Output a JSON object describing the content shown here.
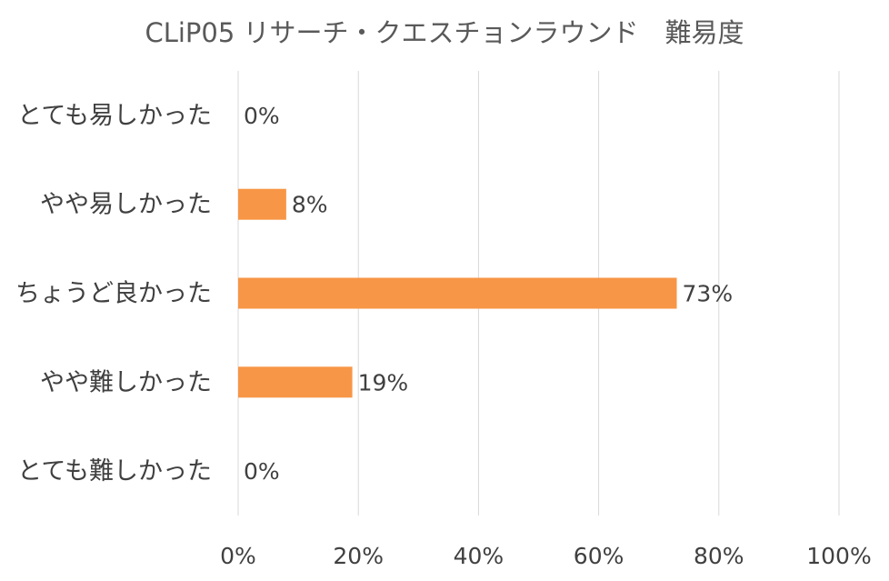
{
  "chart_data": {
    "type": "bar",
    "orientation": "horizontal",
    "title": "CLiP05 リサーチ・クエスチョンラウンド　難易度",
    "categories": [
      "とても易しかった",
      "やや易しかった",
      "ちょうど良かった",
      "やや難しかった",
      "とても難しかった"
    ],
    "values": [
      0,
      8,
      73,
      19,
      0
    ],
    "data_labels": [
      "0%",
      "8%",
      "73%",
      "19%",
      "0%"
    ],
    "xlim": [
      0,
      100
    ],
    "x_ticks": [
      0,
      20,
      40,
      60,
      80,
      100
    ],
    "x_tick_labels": [
      "0%",
      "20%",
      "40%",
      "60%",
      "80%",
      "100%"
    ],
    "xlabel": "",
    "ylabel": "",
    "grid": true,
    "legend": "none",
    "bar_color": "#F79646",
    "grid_color": "#D9D9D9",
    "text_color": "#404040",
    "title_color": "#595959"
  }
}
